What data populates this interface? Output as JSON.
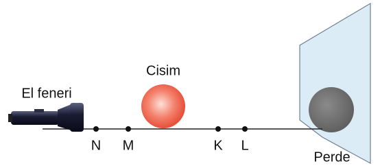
{
  "labels": {
    "flashlight": "El feneri",
    "object": "Cisim",
    "screen": "Perde"
  },
  "points": [
    {
      "label": "N"
    },
    {
      "label": "M"
    },
    {
      "label": "K"
    },
    {
      "label": "L"
    }
  ]
}
